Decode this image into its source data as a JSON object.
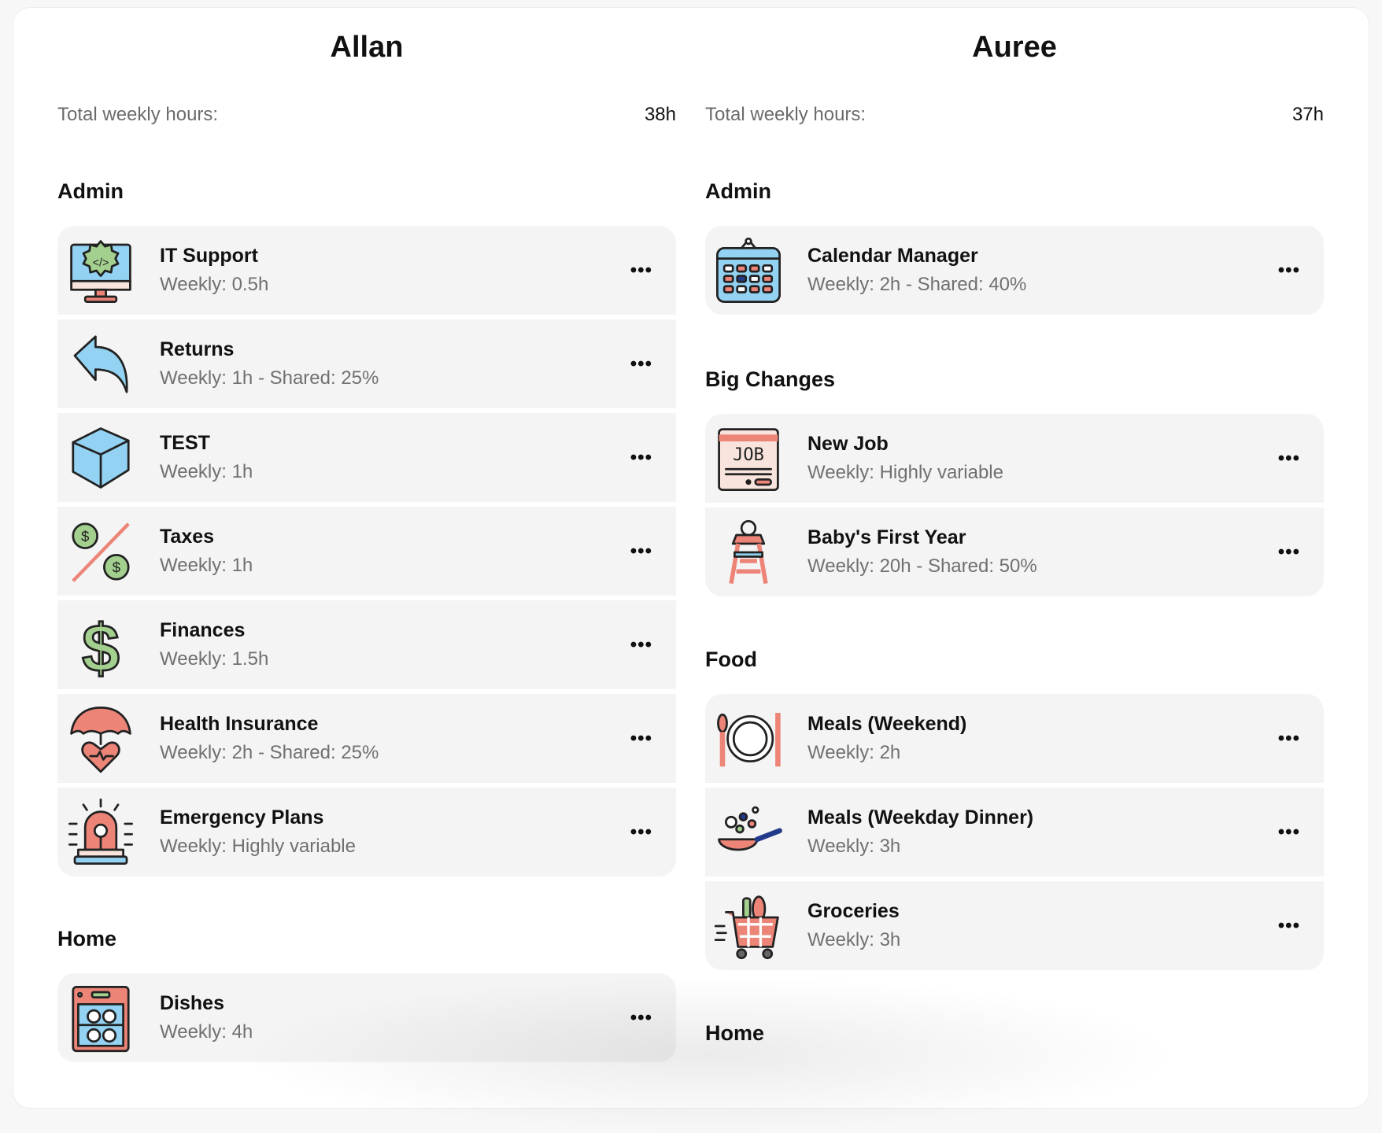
{
  "columns": [
    {
      "name": "Allan",
      "total_label": "Total weekly hours:",
      "total_value": "38h",
      "sections": [
        {
          "title": "Admin",
          "items": [
            {
              "name": "IT Support",
              "detail": "Weekly: 0.5h",
              "icon": "computer-gear-icon"
            },
            {
              "name": "Returns",
              "detail": "Weekly: 1h - Shared: 25%",
              "icon": "return-arrow-icon"
            },
            {
              "name": "TEST",
              "detail": "Weekly: 1h",
              "icon": "cube-icon"
            },
            {
              "name": "Taxes",
              "detail": "Weekly: 1h",
              "icon": "percent-dollar-icon"
            },
            {
              "name": "Finances",
              "detail": "Weekly: 1.5h",
              "icon": "dollar-sign-icon"
            },
            {
              "name": "Health Insurance",
              "detail": "Weekly: 2h - Shared: 25%",
              "icon": "umbrella-heart-icon"
            },
            {
              "name": "Emergency Plans",
              "detail": "Weekly: Highly variable",
              "icon": "siren-icon"
            }
          ]
        },
        {
          "title": "Home",
          "items": [
            {
              "name": "Dishes",
              "detail": "Weekly: 4h",
              "icon": "dishwasher-icon"
            }
          ]
        }
      ]
    },
    {
      "name": "Auree",
      "total_label": "Total weekly hours:",
      "total_value": "37h",
      "sections": [
        {
          "title": "Admin",
          "items": [
            {
              "name": "Calendar Manager",
              "detail": "Weekly: 2h - Shared: 40%",
              "icon": "calendar-icon"
            }
          ]
        },
        {
          "title": "Big Changes",
          "items": [
            {
              "name": "New Job",
              "detail": "Weekly: Highly variable",
              "icon": "job-posting-icon",
              "icon_text": "JOB"
            },
            {
              "name": "Baby's First Year",
              "detail": "Weekly: 20h - Shared: 50%",
              "icon": "high-chair-icon"
            }
          ]
        },
        {
          "title": "Food",
          "items": [
            {
              "name": "Meals (Weekend)",
              "detail": "Weekly: 2h",
              "icon": "plate-cutlery-icon"
            },
            {
              "name": "Meals (Weekday Dinner)",
              "detail": "Weekly: 3h",
              "icon": "frying-pan-icon"
            },
            {
              "name": "Groceries",
              "detail": "Weekly: 3h",
              "icon": "shopping-cart-icon"
            }
          ]
        },
        {
          "title": "Home",
          "items": []
        }
      ]
    }
  ],
  "more_label": "•••",
  "colors": {
    "red": "#e8786a",
    "blue": "#8fd0f0",
    "green": "#9fcf8f",
    "card_bg": "#f4f4f4"
  }
}
